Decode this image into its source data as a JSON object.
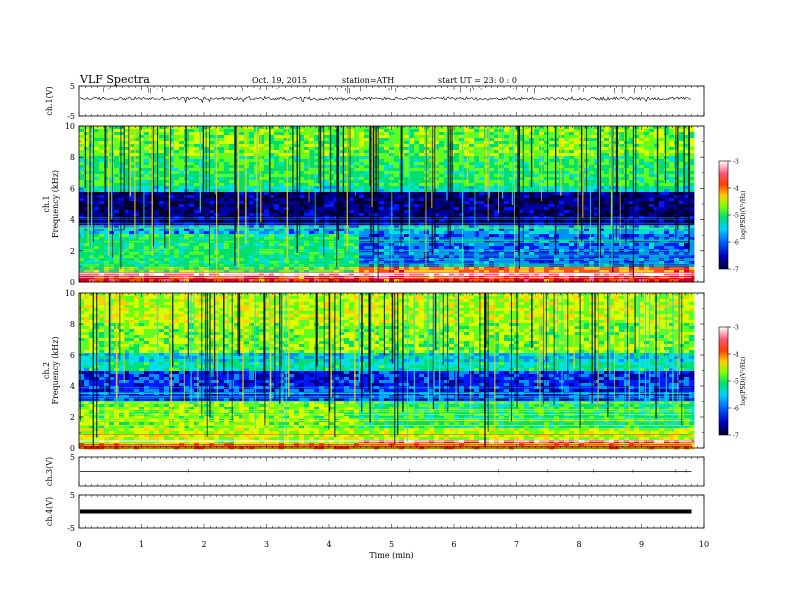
{
  "header": {
    "title": "VLF Spectra",
    "date": "Oct. 19, 2015",
    "station": "station=ATH",
    "start": "start  UT =   23: 0  : 0"
  },
  "colors": {
    "cmap": [
      "#000033",
      "#0000a0",
      "#0018ff",
      "#0090ff",
      "#00e0e0",
      "#00e070",
      "#60ff20",
      "#d8ff00",
      "#ffd000",
      "#ff5000",
      "#e00020",
      "#ff6080",
      "#ffc0d0",
      "#ffffff"
    ]
  },
  "chart_data": [
    {
      "id": "ch1-waveform",
      "type": "line",
      "ylabel": "ch.1(V)",
      "ylim": [
        -5,
        5
      ],
      "yticks": [
        "5",
        "-5"
      ],
      "xlim": [
        0,
        10
      ],
      "trace_level": 0.8,
      "trace_end": 9.8
    },
    {
      "id": "ch1-spectrogram",
      "type": "heatmap",
      "ylabel": "ch.1\nFrequency (kHz)",
      "ylim": [
        0,
        10
      ],
      "yticks": [
        "0",
        "2",
        "4",
        "6",
        "8",
        "10"
      ],
      "xlim": [
        0,
        10
      ],
      "data_end": 9.8,
      "colorbar": {
        "label": "log(PSD)(V²/Hz)",
        "range": [
          -7,
          -3
        ],
        "ticks": [
          "-3",
          "-4",
          "-5",
          "-6",
          "-7"
        ]
      }
    },
    {
      "id": "ch2-spectrogram",
      "type": "heatmap",
      "ylabel": "ch.2\nFrequency (kHz)",
      "ylim": [
        0,
        10
      ],
      "yticks": [
        "0",
        "2",
        "4",
        "6",
        "8",
        "10"
      ],
      "xlim": [
        0,
        10
      ],
      "data_end": 9.8,
      "colorbar": {
        "label": "log(PSD)(V²/Hz)",
        "range": [
          -7,
          -3
        ],
        "ticks": [
          "-3",
          "-4",
          "-5",
          "-6",
          "-7"
        ]
      }
    },
    {
      "id": "ch3-waveform",
      "type": "line",
      "ylabel": "ch.3(V)",
      "ylim": [
        -5,
        5
      ],
      "yticks": [
        "5"
      ],
      "xlim": [
        0,
        10
      ],
      "trace_level": 0.0,
      "trace_end": 9.8
    },
    {
      "id": "ch4-waveform",
      "type": "line",
      "ylabel": "ch.4(V)",
      "ylim": [
        -5,
        5
      ],
      "yticks": [
        "5",
        "-5"
      ],
      "xlim": [
        0,
        10
      ],
      "trace_level": 0.0,
      "trace_end": 9.8
    }
  ],
  "xaxis": {
    "label": "Time (min)",
    "ticks": [
      "0",
      "1",
      "2",
      "3",
      "4",
      "5",
      "6",
      "7",
      "8",
      "9",
      "10"
    ]
  }
}
